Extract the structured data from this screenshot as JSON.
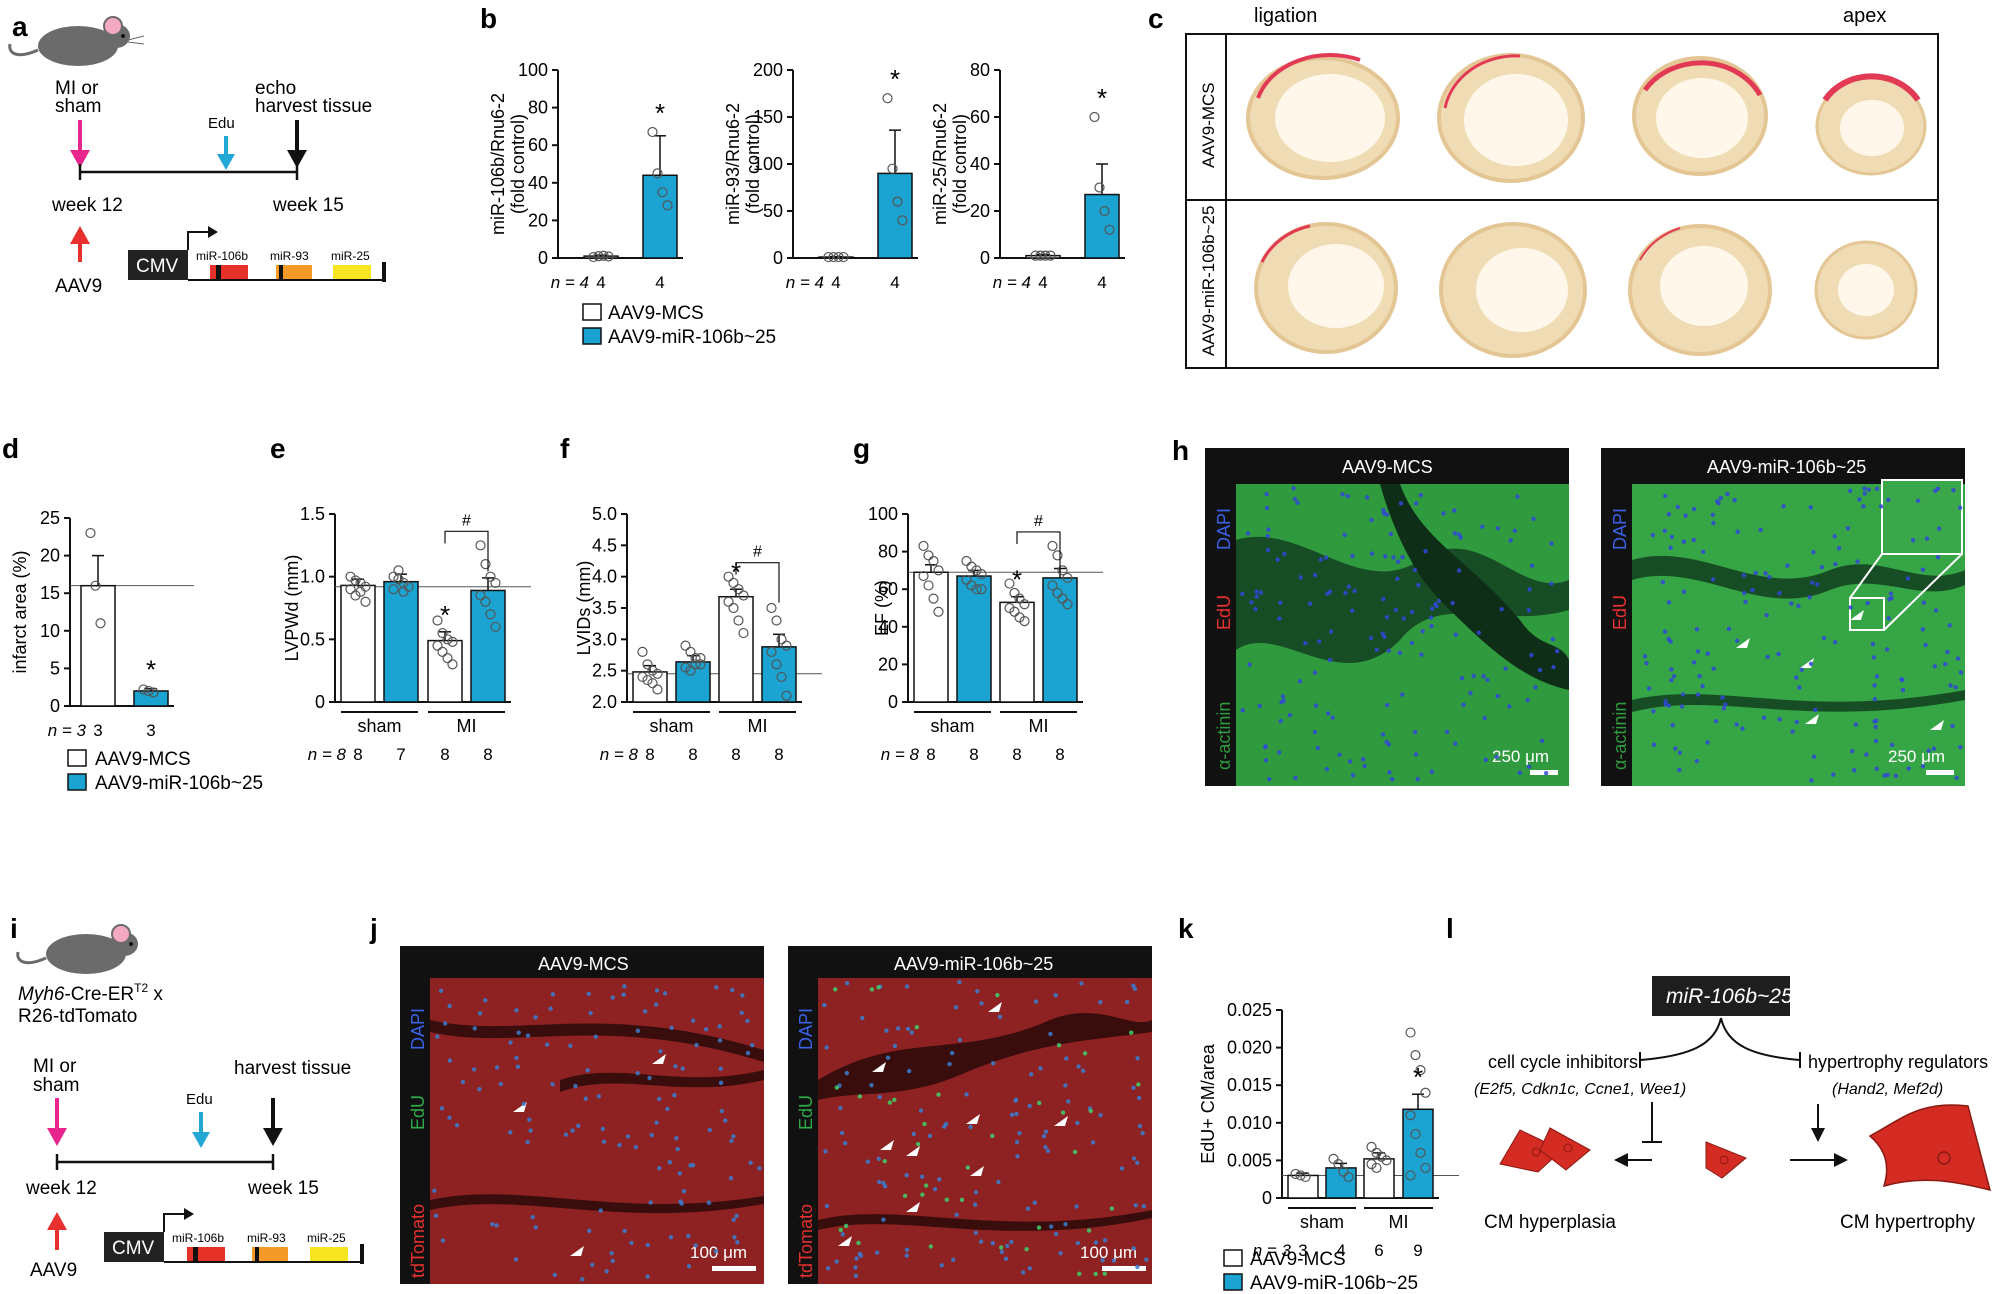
{
  "panels": {
    "a": "a",
    "b": "b",
    "c": "c",
    "d": "d",
    "e": "e",
    "f": "f",
    "g": "g",
    "h": "h",
    "i": "i",
    "j": "j",
    "k": "k",
    "l": "l"
  },
  "colors": {
    "mcs": "#ffffff",
    "mir": "#1ba3d1",
    "mi_arrow": "#e8258f",
    "edu_arrow": "#23a8d6",
    "aav_arrow": "#e8302e",
    "mir106b": "#e63128",
    "mir93": "#f39a29",
    "mir25": "#f7e521",
    "section_red": "#e23a55",
    "myocyte": "#d42b23"
  },
  "timeline_a": {
    "mi_label_1": "MI or",
    "mi_label_2": "sham",
    "edu": "Edu",
    "echo_1": "echo",
    "echo_2": "harvest tissue",
    "week12": "week 12",
    "week15": "week 15",
    "aav": "AAV9",
    "cmv": "CMV",
    "genes": [
      "miR-106b",
      "miR-93",
      "miR-25"
    ]
  },
  "legend": {
    "mcs": "AAV9-MCS",
    "mir": "AAV9-miR-106b~25"
  },
  "c": {
    "ligation": "ligation",
    "apex": "apex",
    "row1": "AAV9-MCS",
    "row2": "AAV9-miR-106b~25"
  },
  "h": {
    "left_title": "AAV9-MCS",
    "right_title": "AAV9-miR-106b~25",
    "dapi": "DAPI",
    "edu": "EdU",
    "actinin": "α-actinin",
    "scale": "250 μm"
  },
  "i": {
    "strain_1": "Myh6",
    "strain_2": "-Cre-ER",
    "strain_sup": "T2",
    "strain_3": " x",
    "strain_4": "R26-tdTomato",
    "mi_1": "MI or",
    "mi_2": "sham",
    "edu": "Edu",
    "harvest": "harvest tissue",
    "week12": "week 12",
    "week15": "week 15",
    "aav": "AAV9",
    "cmv": "CMV",
    "genes": [
      "miR-106b",
      "miR-93",
      "miR-25"
    ]
  },
  "j": {
    "left_title": "AAV9-MCS",
    "right_title": "AAV9-miR-106b~25",
    "dapi": "DAPI",
    "edu": "EdU",
    "tdtomato": "tdTomato",
    "scale": "100 μm"
  },
  "l": {
    "mirna": "miR-106b~25",
    "left_title": "cell cycle inhibitors",
    "left_genes": "(E2f5, Cdkn1c, Ccne1, Wee1)",
    "right_title": "hypertrophy regulators",
    "right_genes": "(Hand2, Mef2d)",
    "hyperplasia": "CM hyperplasia",
    "hypertrophy": "CM hypertrophy"
  },
  "chart_data": [
    {
      "id": "b1",
      "type": "bar",
      "ylabel": "miR-106b/Rnu6-2",
      "ylabel2": "(fold control)",
      "ylim": [
        0,
        100
      ],
      "yticks": [
        0,
        20,
        40,
        60,
        80,
        100
      ],
      "categories": [
        "AAV9-MCS",
        "AAV9-miR-106b~25"
      ],
      "values": [
        1,
        44
      ],
      "errors": [
        0.5,
        21
      ],
      "n": [
        "4",
        "4"
      ],
      "n_prefix": "n = ",
      "star": "*",
      "points": [
        [
          0.5,
          1,
          1.2,
          0.8
        ],
        [
          67,
          45,
          35,
          28
        ]
      ]
    },
    {
      "id": "b2",
      "type": "bar",
      "ylabel": "miR-93/Rnu6-2",
      "ylabel2": "(fold control)",
      "ylim": [
        0,
        200
      ],
      "yticks": [
        0,
        50,
        100,
        150,
        200
      ],
      "categories": [
        "AAV9-MCS",
        "AAV9-miR-106b~25"
      ],
      "values": [
        1,
        90
      ],
      "errors": [
        0.5,
        46
      ],
      "n": [
        "4",
        "4"
      ],
      "n_prefix": "n = ",
      "star": "*",
      "points": [
        [
          1,
          1,
          1,
          1
        ],
        [
          170,
          95,
          60,
          40
        ]
      ]
    },
    {
      "id": "b3",
      "type": "bar",
      "ylabel": "miR-25/Rnu6-2",
      "ylabel2": "(fold control)",
      "ylim": [
        0,
        80
      ],
      "yticks": [
        0,
        20,
        40,
        60,
        80
      ],
      "categories": [
        "AAV9-MCS",
        "AAV9-miR-106b~25"
      ],
      "values": [
        1,
        27
      ],
      "errors": [
        0.5,
        13
      ],
      "n": [
        "4",
        "4"
      ],
      "n_prefix": "n = ",
      "star": "*",
      "points": [
        [
          1,
          1,
          1,
          1
        ],
        [
          60,
          30,
          20,
          12
        ]
      ]
    },
    {
      "id": "d",
      "type": "bar",
      "ylabel": "infarct area (%)",
      "ylim": [
        0,
        25
      ],
      "yticks": [
        0,
        5,
        10,
        15,
        20,
        25
      ],
      "categories": [
        "AAV9-MCS",
        "AAV9-miR-106b~25"
      ],
      "values": [
        16,
        2
      ],
      "errors": [
        4,
        0.3
      ],
      "n": [
        "3",
        "3"
      ],
      "n_prefix": "n = ",
      "star": "*",
      "points": [
        [
          23,
          16,
          11
        ],
        [
          2.2,
          2,
          1.8
        ]
      ],
      "refline": 16
    },
    {
      "id": "e",
      "type": "bar",
      "ylabel": "LVPWd (mm)",
      "ylim": [
        0,
        1.5
      ],
      "yticks": [
        "0",
        "0.5",
        "1.0",
        "1.5"
      ],
      "ytickvals": [
        0,
        0.5,
        1.0,
        1.5
      ],
      "groups": [
        "sham",
        "MI"
      ],
      "values": [
        0.93,
        0.96,
        0.49,
        0.89
      ],
      "errors": [
        0.05,
        0.06,
        0.07,
        0.1
      ],
      "n": [
        "8",
        "7",
        "8",
        "8"
      ],
      "n_prefix": "n = ",
      "refline": 0.92,
      "star_index": 2,
      "hash": "#",
      "star": "*",
      "points": [
        [
          1.0,
          0.97,
          0.95,
          0.92,
          0.9,
          0.85,
          0.88,
          0.8
        ],
        [
          1.0,
          0.98,
          0.95,
          0.92,
          0.9,
          1.05,
          0.88
        ],
        [
          0.65,
          0.55,
          0.5,
          0.48,
          0.45,
          0.4,
          0.35,
          0.3
        ],
        [
          1.25,
          1.1,
          1.0,
          0.95,
          0.85,
          0.8,
          0.7,
          0.6
        ]
      ]
    },
    {
      "id": "f",
      "type": "bar",
      "ylabel": "LVIDs (mm)",
      "ylim": [
        2,
        5
      ],
      "yticks": [
        "2.0",
        "2.5",
        "3.0",
        "3.5",
        "4.0",
        "4.5",
        "5.0"
      ],
      "ytickvals": [
        2,
        2.5,
        3,
        3.5,
        4,
        4.5,
        5
      ],
      "groups": [
        "sham",
        "MI"
      ],
      "values": [
        2.48,
        2.64,
        3.68,
        2.88
      ],
      "errors": [
        0.1,
        0.1,
        0.12,
        0.2
      ],
      "n": [
        "8",
        "8",
        "8",
        "8"
      ],
      "n_prefix": "n = ",
      "refline": 2.45,
      "star_index": 2,
      "hash": "#",
      "star": "*",
      "points": [
        [
          2.8,
          2.6,
          2.5,
          2.45,
          2.4,
          2.35,
          2.3,
          2.2
        ],
        [
          2.9,
          2.8,
          2.7,
          2.6,
          2.55,
          2.5,
          2.6,
          2.7
        ],
        [
          4.0,
          3.9,
          3.8,
          3.7,
          3.6,
          3.5,
          3.3,
          3.1
        ],
        [
          3.5,
          3.3,
          3.0,
          2.9,
          2.8,
          2.6,
          2.4,
          2.1
        ]
      ]
    },
    {
      "id": "g",
      "type": "bar",
      "ylabel": "EF (%)",
      "ylim": [
        0,
        100
      ],
      "yticks": [
        "0",
        "20",
        "40",
        "60",
        "80",
        "100"
      ],
      "ytickvals": [
        0,
        20,
        40,
        60,
        80,
        100
      ],
      "groups": [
        "sham",
        "MI"
      ],
      "values": [
        69,
        67,
        53,
        66
      ],
      "errors": [
        4,
        3,
        3,
        5
      ],
      "n": [
        "8",
        "8",
        "8",
        "8"
      ],
      "n_prefix": "n = ",
      "refline": 69,
      "star_index": 2,
      "hash": "#",
      "star": "*",
      "points": [
        [
          83,
          78,
          75,
          70,
          67,
          62,
          55,
          48
        ],
        [
          75,
          72,
          70,
          68,
          65,
          62,
          60,
          60
        ],
        [
          63,
          58,
          55,
          52,
          50,
          48,
          45,
          43
        ],
        [
          83,
          78,
          70,
          66,
          62,
          58,
          55,
          52
        ]
      ]
    },
    {
      "id": "k",
      "type": "bar",
      "ylabel": "EdU+ CM/area",
      "ylim": [
        0,
        0.025
      ],
      "yticks": [
        "0",
        "0.005",
        "0.010",
        "0.015",
        "0.020",
        "0.025"
      ],
      "ytickvals": [
        0,
        0.005,
        0.01,
        0.015,
        0.02,
        0.025
      ],
      "groups": [
        "sham",
        "MI"
      ],
      "values": [
        0.003,
        0.004,
        0.0052,
        0.0118
      ],
      "errors": [
        0.0003,
        0.0006,
        0.0008,
        0.002
      ],
      "n": [
        "3",
        "4",
        "6",
        "9"
      ],
      "n_prefix": "n = ",
      "refline": 0.003,
      "star_index": 3,
      "star": "*",
      "points": [
        [
          0.0032,
          0.003,
          0.0028
        ],
        [
          0.0052,
          0.0045,
          0.0035,
          0.0028
        ],
        [
          0.0068,
          0.006,
          0.0055,
          0.005,
          0.0045,
          0.004
        ],
        [
          0.022,
          0.019,
          0.017,
          0.014,
          0.011,
          0.0085,
          0.006,
          0.004,
          0.003
        ]
      ]
    }
  ]
}
